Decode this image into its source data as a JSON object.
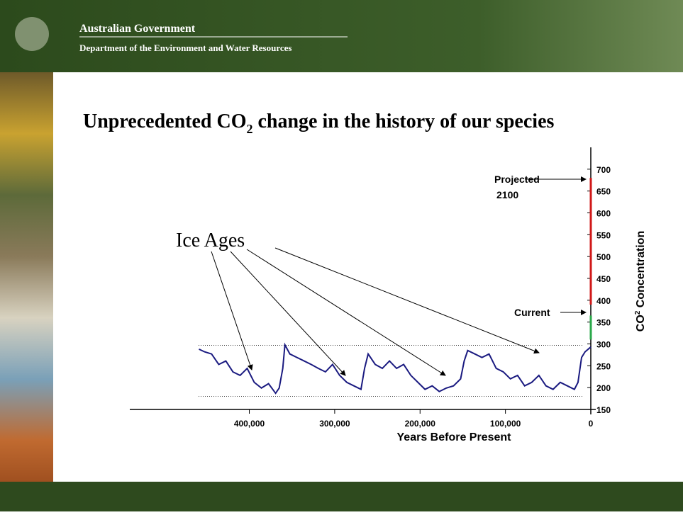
{
  "header": {
    "title": "Australian Government",
    "subtitle": "Department of the Environment and Water Resources"
  },
  "chart_data": {
    "type": "line",
    "title": [
      "Unprecedented CO",
      "2",
      " change in the history of our species"
    ],
    "xlabel": "Years Before Present",
    "ylabel": [
      "CO",
      "2",
      " Concentration"
    ],
    "xlim": [
      540000,
      0
    ],
    "xticks": [
      {
        "value": 400000,
        "label": "400,000"
      },
      {
        "value": 300000,
        "label": "300,000"
      },
      {
        "value": 200000,
        "label": "200,000"
      },
      {
        "value": 100000,
        "label": "100,000"
      },
      0
    ],
    "ylim": [
      150,
      750
    ],
    "yticks": [
      150,
      200,
      250,
      300,
      350,
      400,
      450,
      500,
      550,
      600,
      650,
      700
    ],
    "reference_lines": [
      297,
      180
    ],
    "series": [
      {
        "color": "#1a1a80",
        "x": [
          459000,
          452500,
          444200,
          435800,
          427500,
          419200,
          410800,
          402500,
          394200,
          385800,
          377500,
          369200,
          365000,
          360800,
          358300,
          352500,
          344200,
          335800,
          327500,
          319200,
          310800,
          302500,
          294200,
          285800,
          277500,
          269200,
          265000,
          260800,
          252500,
          244200,
          235800,
          227500,
          219200,
          210800,
          202500,
          194200,
          185800,
          177500,
          169200,
          160800,
          152500,
          148300,
          144200,
          135800,
          127500,
          119200,
          110800,
          102500,
          94200,
          85800,
          77500,
          69200,
          60800,
          52500,
          44200,
          35800,
          27500,
          19200,
          15000,
          10800,
          6700,
          0
        ],
        "values": [
          288,
          282,
          277,
          253,
          261,
          236,
          228,
          244,
          212,
          199,
          209,
          187,
          199,
          244,
          298,
          277,
          269,
          261,
          253,
          244,
          236,
          253,
          228,
          212,
          204,
          196,
          244,
          277,
          253,
          244,
          261,
          244,
          253,
          228,
          212,
          196,
          204,
          191,
          199,
          204,
          220,
          261,
          285,
          277,
          269,
          277,
          244,
          236,
          220,
          228,
          204,
          212,
          228,
          204,
          196,
          212,
          204,
          196,
          212,
          269,
          282,
          293
        ]
      },
      {
        "color": "#2aa84a",
        "x": [
          0,
          0
        ],
        "values": [
          310,
          365
        ]
      },
      {
        "color": "#d01818",
        "x": [
          0,
          0
        ],
        "values": [
          390,
          680
        ]
      }
    ],
    "annotations": {
      "ice_ages": "Ice Ages",
      "current": "Current",
      "projected": [
        "Projected",
        "2100"
      ]
    }
  }
}
